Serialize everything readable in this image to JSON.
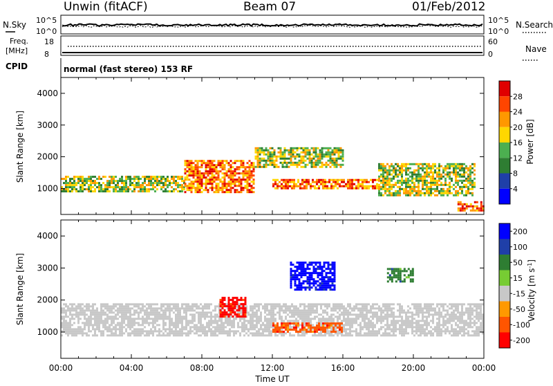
{
  "header": {
    "station": "Unwin (fitACF)",
    "beam": "Beam 07",
    "date": "01/Feb/2012"
  },
  "summary": {
    "left_labels": {
      "nsky": "N.Sky",
      "freq": "Freq.",
      "freq_unit": "[MHz]",
      "cpid": "CPID"
    },
    "right_labels": {
      "nsearch": "N.Search",
      "nave": "Nave"
    },
    "axis_ticks": {
      "nsky": [
        "10^5",
        "10^0"
      ],
      "nsearch": [
        "10^5",
        "10^0"
      ],
      "freq": [
        "18",
        "8"
      ],
      "nave": [
        "60",
        "0"
      ]
    },
    "cpid_text": "normal (fast stereo) 153 RF"
  },
  "colors": {
    "power": [
      "#0000ff",
      "#1f3fa8",
      "#2e7d32",
      "#4caf50",
      "#ffd700",
      "#ff9800",
      "#ff4500",
      "#e00000"
    ],
    "velocity": [
      "#0000ff",
      "#1f3fa8",
      "#2e7d32",
      "#77cc33",
      "#c8c8c8",
      "#ff9900",
      "#ff5500",
      "#ff0000"
    ]
  },
  "chart_data": [
    {
      "type": "heatmap",
      "name": "power",
      "title": "",
      "xlabel": "",
      "ylabel": "Slant Range [km]",
      "xlim": [
        "00:00",
        "24:00"
      ],
      "ylim": [
        180,
        4500
      ],
      "x_ticks": [
        "00:00",
        "04:00",
        "08:00",
        "12:00",
        "16:00",
        "20:00",
        "00:00"
      ],
      "y_ticks": [
        1000,
        2000,
        3000,
        4000
      ],
      "colorbar": {
        "label": "Power [dB]",
        "ticks": [
          4,
          8,
          12,
          16,
          20,
          24,
          28
        ],
        "range": [
          0,
          32
        ]
      },
      "echo_bands": [
        {
          "t_start": 0.0,
          "t_end": 7.0,
          "r_start": 900,
          "r_end": 1400,
          "level": "medium"
        },
        {
          "t_start": 7.0,
          "t_end": 11.0,
          "r_start": 900,
          "r_end": 1900,
          "level": "high"
        },
        {
          "t_start": 11.0,
          "t_end": 16.0,
          "r_start": 1700,
          "r_end": 2300,
          "level": "medium"
        },
        {
          "t_start": 12.0,
          "t_end": 18.0,
          "r_start": 1000,
          "r_end": 1300,
          "level": "high"
        },
        {
          "t_start": 18.0,
          "t_end": 23.5,
          "r_start": 800,
          "r_end": 1800,
          "level": "medium"
        },
        {
          "t_start": 22.5,
          "t_end": 24.0,
          "r_start": 300,
          "r_end": 600,
          "level": "high"
        }
      ]
    },
    {
      "type": "heatmap",
      "name": "velocity",
      "title": "",
      "xlabel": "Time UT",
      "ylabel": "Slant Range [km]",
      "xlim": [
        "00:00",
        "24:00"
      ],
      "ylim": [
        180,
        4500
      ],
      "x_ticks": [
        "00:00",
        "04:00",
        "08:00",
        "12:00",
        "16:00",
        "20:00",
        "00:00"
      ],
      "y_ticks": [
        1000,
        2000,
        3000,
        4000
      ],
      "colorbar": {
        "label": "Velocity [m s^-1]",
        "ticks": [
          "200",
          "100",
          "50",
          "15",
          "-15",
          "-50",
          "-100",
          "-200"
        ]
      },
      "echo_bands": [
        {
          "t_start": 0.0,
          "t_end": 24.0,
          "r_start": 900,
          "r_end": 1900,
          "level": "ground-scatter"
        },
        {
          "t_start": 9.0,
          "t_end": 10.5,
          "r_start": 1500,
          "r_end": 2100,
          "level": "-200"
        },
        {
          "t_start": 12.0,
          "t_end": 16.0,
          "r_start": 1000,
          "r_end": 1300,
          "level": "-100"
        },
        {
          "t_start": 13.0,
          "t_end": 15.5,
          "r_start": 2300,
          "r_end": 3200,
          "level": "200"
        },
        {
          "t_start": 18.5,
          "t_end": 20.0,
          "r_start": 2600,
          "r_end": 3000,
          "level": "50"
        }
      ]
    }
  ]
}
